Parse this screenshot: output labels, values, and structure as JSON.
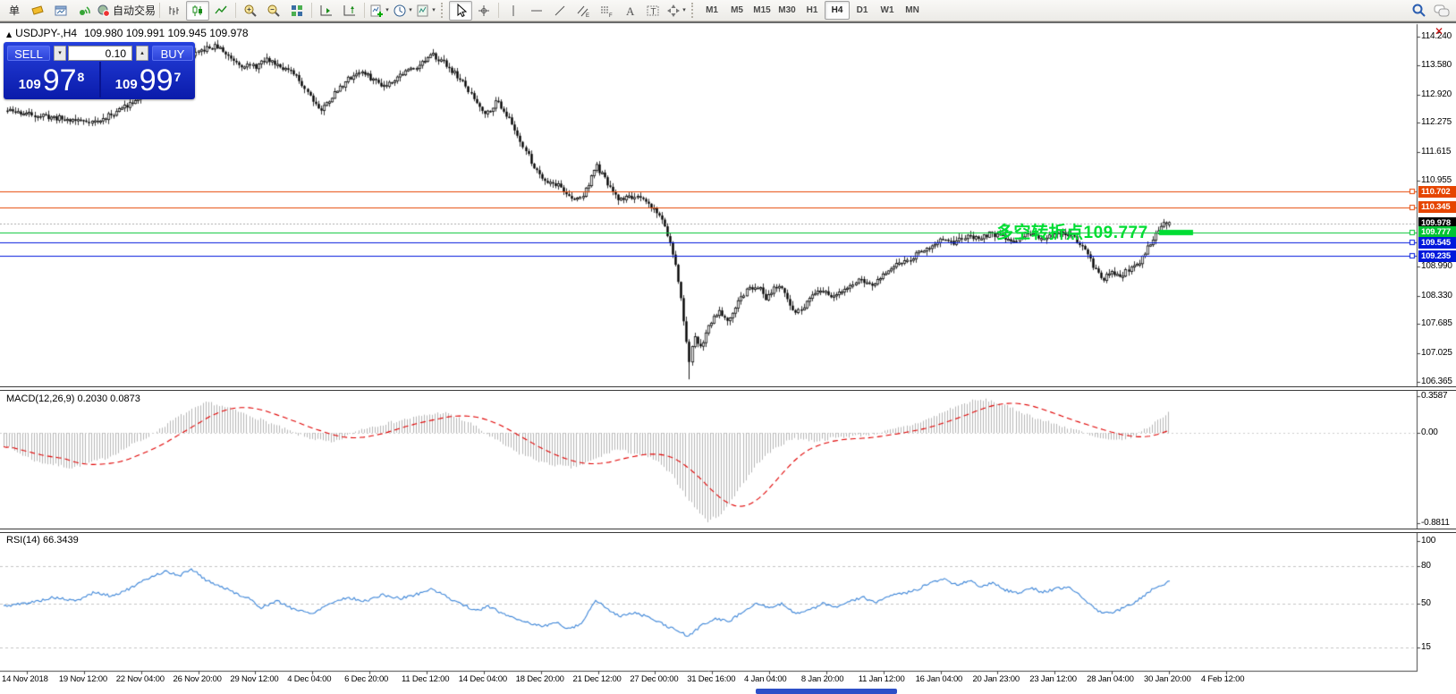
{
  "icons": {
    "caret_down": "▾",
    "caret_up": "▴",
    "triangle_up": "▲",
    "close": "✕"
  },
  "toolbar": {
    "new_order_label": "单",
    "autotrading_label": "自动交易",
    "timeframes": [
      "M1",
      "M5",
      "M15",
      "M30",
      "H1",
      "H4",
      "D1",
      "W1",
      "MN"
    ],
    "active_timeframe": "H4"
  },
  "chart_header": {
    "symbol_title": "USDJPY-,H4",
    "ohlc": "109.980 109.991 109.945 109.978"
  },
  "trade_panel": {
    "sell_label": "SELL",
    "buy_label": "BUY",
    "volume": "0.10",
    "sell_price": {
      "prefix": "109",
      "big": "97",
      "sup": "8"
    },
    "buy_price": {
      "prefix": "109",
      "big": "99",
      "sup": "7"
    }
  },
  "price_axis": {
    "ticks": [
      "114.240",
      "113.580",
      "112.920",
      "112.275",
      "111.615",
      "110.955",
      "108.990",
      "108.330",
      "107.685",
      "107.025",
      "106.365"
    ]
  },
  "levels": [
    {
      "label": "110.702",
      "price": 110.702,
      "color": "#e64500",
      "kind": "resistance"
    },
    {
      "label": "110.345",
      "price": 110.345,
      "color": "#e64500",
      "kind": "resistance"
    },
    {
      "label": "109.978",
      "price": 109.978,
      "color": "#000000",
      "kind": "current-price"
    },
    {
      "label": "109.777",
      "price": 109.777,
      "color": "#00c432",
      "kind": "pivot"
    },
    {
      "label": "109.545",
      "price": 109.545,
      "color": "#0018dc",
      "kind": "support"
    },
    {
      "label": "109.235",
      "price": 109.235,
      "color": "#0018dc",
      "kind": "support"
    }
  ],
  "annotation": {
    "text": "多空转折点109.777",
    "color": "#00dd33",
    "pivot_price": 109.777
  },
  "macd_panel": {
    "label": "MACD(12,26,9) 0.2030 0.0873",
    "ticks": [
      "0.3587",
      "0.00",
      "-0.8811"
    ],
    "histogram_color": "#b6b6b6",
    "signal_color": "#e00000"
  },
  "rsi_panel": {
    "label": "RSI(14) 66.3439",
    "ticks": [
      "100",
      "80",
      "50",
      "15"
    ],
    "levels": [
      80,
      50,
      15
    ],
    "line_color": "#3e86d8"
  },
  "date_axis": [
    "14 Nov 2018",
    "19 Nov 12:00",
    "22 Nov 04:00",
    "26 Nov 20:00",
    "29 Nov 12:00",
    "4 Dec 04:00",
    "6 Dec 20:00",
    "11 Dec 12:00",
    "14 Dec 04:00",
    "18 Dec 20:00",
    "21 Dec 12:00",
    "27 Dec 00:00",
    "31 Dec 16:00",
    "4 Jan 04:00",
    "8 Jan 20:00",
    "11 Jan 12:00",
    "16 Jan 04:00",
    "20 Jan 23:00",
    "23 Jan 12:00",
    "28 Jan 04:00",
    "30 Jan 20:00",
    "4 Feb 12:00"
  ],
  "chart_data": {
    "type": "candlestick",
    "symbol": "USDJPY-",
    "timeframe": "H4",
    "y_axis_range": [
      106.365,
      114.24
    ],
    "price_anchors": [
      [
        8,
        112.55
      ],
      [
        40,
        112.45
      ],
      [
        75,
        112.35
      ],
      [
        110,
        112.3
      ],
      [
        140,
        112.65
      ],
      [
        170,
        113.1
      ],
      [
        200,
        113.6
      ],
      [
        228,
        113.95
      ],
      [
        242,
        114.02
      ],
      [
        255,
        113.8
      ],
      [
        270,
        113.6
      ],
      [
        285,
        113.55
      ],
      [
        298,
        113.72
      ],
      [
        312,
        113.6
      ],
      [
        330,
        113.35
      ],
      [
        345,
        112.95
      ],
      [
        358,
        112.55
      ],
      [
        372,
        112.9
      ],
      [
        388,
        113.25
      ],
      [
        402,
        113.45
      ],
      [
        415,
        113.28
      ],
      [
        430,
        113.12
      ],
      [
        448,
        113.38
      ],
      [
        468,
        113.6
      ],
      [
        484,
        113.82
      ],
      [
        498,
        113.62
      ],
      [
        515,
        113.25
      ],
      [
        532,
        112.75
      ],
      [
        543,
        112.48
      ],
      [
        556,
        112.78
      ],
      [
        568,
        112.4
      ],
      [
        582,
        111.85
      ],
      [
        597,
        111.25
      ],
      [
        610,
        110.95
      ],
      [
        625,
        110.85
      ],
      [
        640,
        110.5
      ],
      [
        652,
        110.62
      ],
      [
        666,
        111.3
      ],
      [
        676,
        110.98
      ],
      [
        690,
        110.52
      ],
      [
        705,
        110.6
      ],
      [
        720,
        110.48
      ],
      [
        733,
        110.28
      ],
      [
        744,
        109.9
      ],
      [
        752,
        109.3
      ],
      [
        759,
        108.6
      ],
      [
        765,
        107.7
      ],
      [
        770,
        106.72
      ],
      [
        776,
        107.4
      ],
      [
        783,
        107.15
      ],
      [
        792,
        107.65
      ],
      [
        803,
        108.0
      ],
      [
        814,
        107.78
      ],
      [
        825,
        108.18
      ],
      [
        836,
        108.48
      ],
      [
        846,
        108.58
      ],
      [
        856,
        108.28
      ],
      [
        866,
        108.55
      ],
      [
        876,
        108.42
      ],
      [
        886,
        108.0
      ],
      [
        896,
        107.98
      ],
      [
        906,
        108.28
      ],
      [
        920,
        108.45
      ],
      [
        934,
        108.28
      ],
      [
        948,
        108.55
      ],
      [
        962,
        108.68
      ],
      [
        976,
        108.55
      ],
      [
        990,
        108.85
      ],
      [
        1005,
        109.05
      ],
      [
        1020,
        109.22
      ],
      [
        1035,
        109.42
      ],
      [
        1050,
        109.58
      ],
      [
        1065,
        109.52
      ],
      [
        1080,
        109.68
      ],
      [
        1092,
        109.62
      ],
      [
        1106,
        109.75
      ],
      [
        1120,
        109.68
      ],
      [
        1134,
        109.58
      ],
      [
        1148,
        109.74
      ],
      [
        1162,
        109.64
      ],
      [
        1176,
        109.7
      ],
      [
        1190,
        109.74
      ],
      [
        1202,
        109.62
      ],
      [
        1213,
        109.4
      ],
      [
        1222,
        109.0
      ],
      [
        1232,
        108.68
      ],
      [
        1242,
        108.84
      ],
      [
        1252,
        108.78
      ],
      [
        1262,
        108.92
      ],
      [
        1272,
        109.05
      ],
      [
        1282,
        109.4
      ],
      [
        1292,
        109.75
      ],
      [
        1300,
        109.95
      ],
      [
        1308,
        109.978
      ]
    ],
    "macd_anchors": [
      [
        4,
        -0.12
      ],
      [
        40,
        -0.28
      ],
      [
        80,
        -0.34
      ],
      [
        120,
        -0.24
      ],
      [
        160,
        -0.06
      ],
      [
        200,
        0.16
      ],
      [
        232,
        0.3
      ],
      [
        262,
        0.22
      ],
      [
        300,
        0.1
      ],
      [
        340,
        -0.04
      ],
      [
        372,
        -0.1
      ],
      [
        404,
        0.04
      ],
      [
        436,
        0.1
      ],
      [
        468,
        0.16
      ],
      [
        496,
        0.2
      ],
      [
        524,
        0.1
      ],
      [
        552,
        -0.06
      ],
      [
        580,
        -0.2
      ],
      [
        610,
        -0.3
      ],
      [
        640,
        -0.34
      ],
      [
        664,
        -0.26
      ],
      [
        688,
        -0.16
      ],
      [
        710,
        -0.2
      ],
      [
        732,
        -0.26
      ],
      [
        752,
        -0.42
      ],
      [
        772,
        -0.68
      ],
      [
        790,
        -0.86
      ],
      [
        808,
        -0.78
      ],
      [
        828,
        -0.52
      ],
      [
        848,
        -0.28
      ],
      [
        868,
        -0.14
      ],
      [
        888,
        -0.05
      ],
      [
        910,
        -0.08
      ],
      [
        932,
        -0.05
      ],
      [
        954,
        -0.03
      ],
      [
        976,
        -0.01
      ],
      [
        998,
        0.03
      ],
      [
        1020,
        0.08
      ],
      [
        1042,
        0.15
      ],
      [
        1064,
        0.24
      ],
      [
        1086,
        0.31
      ],
      [
        1104,
        0.32
      ],
      [
        1122,
        0.27
      ],
      [
        1142,
        0.2
      ],
      [
        1162,
        0.13
      ],
      [
        1182,
        0.08
      ],
      [
        1202,
        0.03
      ],
      [
        1222,
        -0.04
      ],
      [
        1244,
        -0.08
      ],
      [
        1266,
        -0.04
      ],
      [
        1284,
        0.06
      ],
      [
        1300,
        0.16
      ],
      [
        1308,
        0.2
      ]
    ],
    "rsi_anchors": [
      [
        4,
        48
      ],
      [
        35,
        51
      ],
      [
        60,
        55
      ],
      [
        85,
        52
      ],
      [
        105,
        59
      ],
      [
        125,
        56
      ],
      [
        148,
        63
      ],
      [
        170,
        72
      ],
      [
        186,
        76
      ],
      [
        200,
        72
      ],
      [
        214,
        78
      ],
      [
        230,
        69
      ],
      [
        246,
        64
      ],
      [
        262,
        59
      ],
      [
        278,
        54
      ],
      [
        292,
        47
      ],
      [
        310,
        52
      ],
      [
        328,
        46
      ],
      [
        348,
        42
      ],
      [
        368,
        50
      ],
      [
        388,
        55
      ],
      [
        408,
        52
      ],
      [
        428,
        57
      ],
      [
        448,
        54
      ],
      [
        468,
        58
      ],
      [
        484,
        62
      ],
      [
        500,
        55
      ],
      [
        516,
        50
      ],
      [
        532,
        44
      ],
      [
        546,
        48
      ],
      [
        562,
        42
      ],
      [
        578,
        38
      ],
      [
        594,
        34
      ],
      [
        608,
        32
      ],
      [
        622,
        35
      ],
      [
        636,
        30
      ],
      [
        650,
        34
      ],
      [
        666,
        53
      ],
      [
        680,
        45
      ],
      [
        695,
        40
      ],
      [
        710,
        43
      ],
      [
        725,
        39
      ],
      [
        740,
        34
      ],
      [
        755,
        29
      ],
      [
        770,
        24
      ],
      [
        785,
        33
      ],
      [
        800,
        38
      ],
      [
        815,
        36
      ],
      [
        830,
        43
      ],
      [
        845,
        51
      ],
      [
        860,
        46
      ],
      [
        875,
        50
      ],
      [
        890,
        42
      ],
      [
        905,
        45
      ],
      [
        920,
        50
      ],
      [
        935,
        47
      ],
      [
        950,
        52
      ],
      [
        965,
        55
      ],
      [
        980,
        51
      ],
      [
        995,
        56
      ],
      [
        1010,
        58
      ],
      [
        1025,
        61
      ],
      [
        1040,
        67
      ],
      [
        1055,
        70
      ],
      [
        1070,
        65
      ],
      [
        1085,
        69
      ],
      [
        1096,
        63
      ],
      [
        1110,
        67
      ],
      [
        1124,
        61
      ],
      [
        1138,
        58
      ],
      [
        1152,
        63
      ],
      [
        1166,
        59
      ],
      [
        1180,
        62
      ],
      [
        1194,
        63
      ],
      [
        1206,
        58
      ],
      [
        1218,
        50
      ],
      [
        1228,
        44
      ],
      [
        1240,
        42
      ],
      [
        1254,
        46
      ],
      [
        1268,
        51
      ],
      [
        1282,
        58
      ],
      [
        1294,
        64
      ],
      [
        1306,
        67
      ]
    ]
  }
}
